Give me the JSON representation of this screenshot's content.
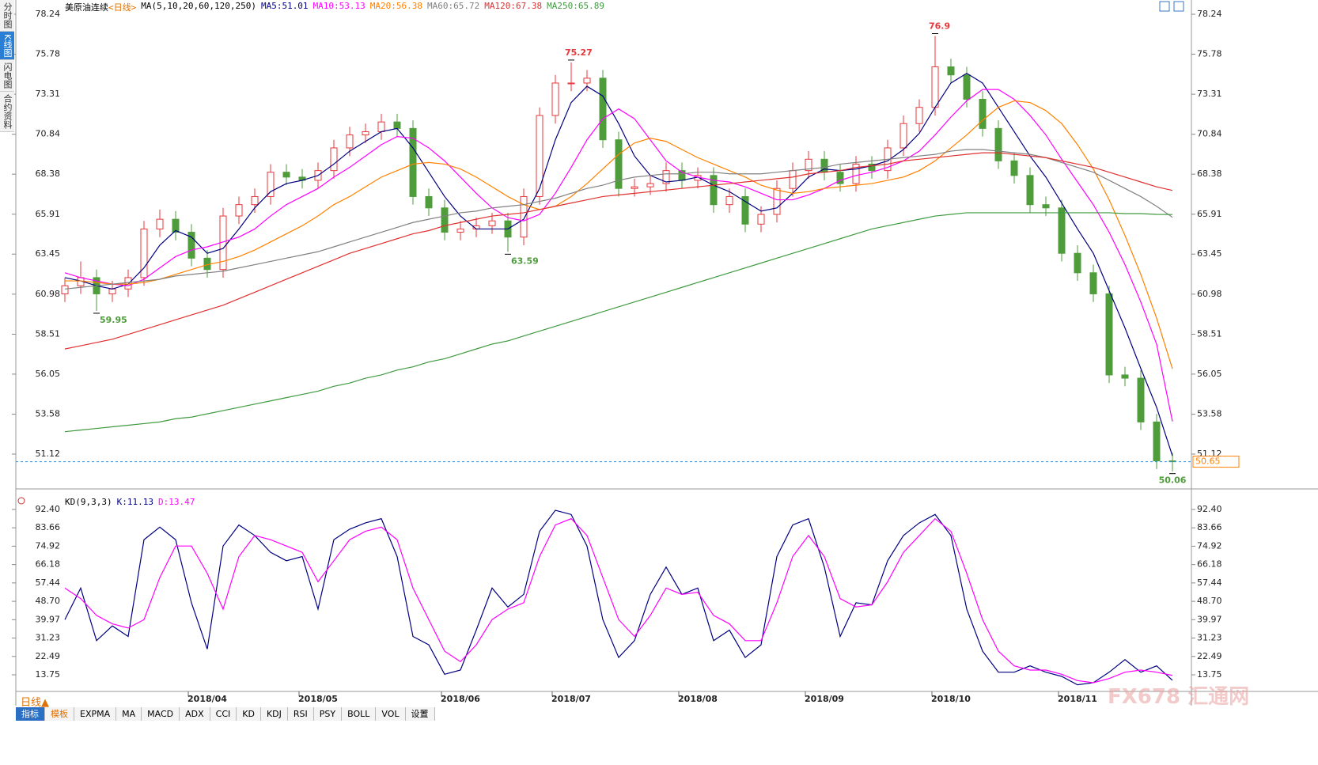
{
  "sidebar_tabs": [
    "分时图",
    "K线图",
    "闪电图",
    "合约资料"
  ],
  "period_button": "日线▲",
  "toolbar": [
    "指标",
    "模板",
    "EXPMA",
    "MA",
    "MACD",
    "ADX",
    "CCI",
    "KD",
    "KDJ",
    "RSI",
    "PSY",
    "BOLL",
    "VOL",
    "设置"
  ],
  "watermark": "FX678 汇通网",
  "chart_data": [
    {
      "type": "candlestick",
      "title": "美原油连续",
      "period": "<日线>",
      "indicator": "MA(5,10,20,60,120,250)",
      "categories": [
        null,
        null,
        null,
        null,
        null,
        null,
        null,
        null,
        null,
        "2018/04",
        null,
        null,
        null,
        null,
        null,
        null,
        "2018/05",
        null,
        null,
        null,
        null,
        null,
        null,
        null,
        null,
        "2018/06",
        null,
        null,
        null,
        null,
        null,
        null,
        "2018/07",
        null,
        null,
        null,
        null,
        null,
        null,
        null,
        "2018/08",
        null,
        null,
        null,
        null,
        null,
        null,
        null,
        "2018/09",
        null,
        null,
        null,
        null,
        null,
        null,
        null,
        "2018/10",
        null,
        null,
        null,
        null,
        null,
        null,
        null,
        "2018/11",
        null,
        null,
        null,
        null,
        null,
        null
      ],
      "open": [
        61.0,
        61.5,
        62.0,
        61.0,
        61.3,
        62.0,
        65.0,
        65.6,
        64.8,
        63.2,
        62.5,
        65.8,
        66.5,
        67.0,
        68.5,
        68.2,
        68.0,
        68.6,
        70.0,
        70.8,
        71.0,
        71.6,
        71.2,
        67.0,
        66.3,
        64.8,
        65.0,
        65.2,
        65.5,
        64.5,
        67.0,
        72.0,
        74.0,
        74.0,
        74.3,
        70.5,
        67.5,
        67.6,
        67.8,
        68.6,
        68.0,
        68.3,
        66.5,
        67.0,
        65.3,
        65.9,
        67.5,
        68.6,
        69.3,
        68.5,
        67.8,
        69.0,
        68.6,
        70.0,
        71.5,
        72.5,
        75.0,
        74.5,
        73.0,
        71.2,
        69.2,
        68.3,
        66.5,
        66.3,
        63.5,
        62.3,
        61.0,
        56.0,
        55.8,
        53.1,
        50.7
      ],
      "high": [
        62.0,
        63.0,
        62.5,
        61.8,
        62.5,
        65.5,
        66.2,
        66.1,
        65.3,
        63.7,
        66.3,
        67.0,
        67.5,
        69.0,
        69.0,
        68.7,
        69.1,
        70.5,
        71.3,
        71.5,
        72.1,
        72.1,
        71.7,
        67.5,
        66.8,
        65.5,
        65.7,
        66.0,
        66.0,
        67.5,
        72.5,
        74.5,
        75.27,
        74.8,
        74.8,
        71.0,
        68.1,
        68.3,
        69.1,
        69.1,
        68.8,
        68.8,
        67.5,
        67.5,
        66.4,
        68.0,
        69.1,
        69.8,
        69.8,
        69.0,
        69.5,
        69.5,
        70.5,
        72.0,
        73.0,
        76.9,
        75.5,
        75.0,
        73.5,
        71.7,
        69.7,
        68.8,
        67.0,
        66.8,
        64.0,
        62.8,
        61.5,
        56.5,
        56.3,
        53.6,
        51.2
      ],
      "low": [
        60.5,
        61.0,
        59.95,
        60.5,
        60.8,
        61.5,
        64.5,
        64.3,
        62.7,
        62.0,
        62.0,
        65.3,
        66.0,
        66.5,
        67.7,
        67.5,
        67.5,
        68.1,
        69.5,
        70.3,
        70.5,
        70.7,
        66.5,
        65.8,
        64.3,
        64.3,
        64.5,
        64.7,
        63.59,
        64.0,
        66.5,
        71.5,
        73.5,
        73.5,
        70.0,
        67.0,
        67.0,
        67.1,
        67.3,
        67.5,
        67.5,
        66.0,
        66.0,
        64.8,
        64.8,
        65.4,
        67.0,
        68.1,
        68.0,
        67.3,
        67.3,
        68.1,
        68.1,
        69.5,
        71.0,
        72.0,
        74.0,
        72.5,
        70.7,
        68.7,
        67.8,
        66.0,
        65.8,
        63.0,
        61.8,
        60.5,
        55.5,
        55.3,
        52.6,
        50.2,
        50.06
      ],
      "close": [
        61.5,
        62.0,
        61.0,
        61.3,
        62.0,
        65.0,
        65.6,
        64.8,
        63.2,
        62.5,
        65.8,
        66.5,
        67.0,
        68.5,
        68.2,
        68.0,
        68.6,
        70.0,
        70.8,
        71.0,
        71.6,
        71.2,
        67.0,
        66.3,
        64.8,
        65.0,
        65.2,
        65.5,
        64.5,
        67.0,
        72.0,
        74.0,
        74.0,
        74.3,
        70.5,
        67.5,
        67.6,
        67.8,
        68.6,
        68.0,
        68.3,
        66.5,
        67.0,
        65.3,
        65.9,
        67.5,
        68.6,
        69.3,
        68.5,
        67.8,
        69.0,
        68.6,
        70.0,
        71.5,
        72.5,
        75.0,
        74.5,
        73.0,
        71.2,
        69.2,
        68.3,
        66.5,
        66.3,
        63.5,
        62.3,
        61.0,
        56.0,
        55.8,
        53.1,
        50.7,
        50.65
      ],
      "up_color": "#e8363a",
      "down_color": "#4e9c3a",
      "last_price_color": "#ff8000",
      "series": [
        {
          "name": "MA5:51.01",
          "color": "#000080",
          "values": [
            62.0,
            61.8,
            61.5,
            61.3,
            61.6,
            62.6,
            64.0,
            64.9,
            64.5,
            63.5,
            63.8,
            65.0,
            66.3,
            67.3,
            67.8,
            68.0,
            68.3,
            69.0,
            69.8,
            70.4,
            71.0,
            71.2,
            70.0,
            68.5,
            67.0,
            65.8,
            65.0,
            65.0,
            65.0,
            65.6,
            67.5,
            70.5,
            72.8,
            73.8,
            73.2,
            71.5,
            69.5,
            68.3,
            67.9,
            68.0,
            68.2,
            67.7,
            67.3,
            66.7,
            66.1,
            66.3,
            67.2,
            68.2,
            68.7,
            68.6,
            68.7,
            68.9,
            69.2,
            69.9,
            70.9,
            72.5,
            74.0,
            74.6,
            74.0,
            72.5,
            71.0,
            69.5,
            68.2,
            66.6,
            65.0,
            63.5,
            61.2,
            58.9,
            56.4,
            54.0,
            51.01
          ]
        },
        {
          "name": "MA10:53.13",
          "color": "#ff00ff",
          "values": [
            62.3,
            62.0,
            61.8,
            61.6,
            61.5,
            61.9,
            62.6,
            63.3,
            63.7,
            63.9,
            64.2,
            64.5,
            65.0,
            65.8,
            66.5,
            67.0,
            67.5,
            68.2,
            68.8,
            69.5,
            70.2,
            70.7,
            70.6,
            70.0,
            69.2,
            68.2,
            67.2,
            66.3,
            65.7,
            65.5,
            65.9,
            67.2,
            68.8,
            70.5,
            71.8,
            72.4,
            71.8,
            70.5,
            69.2,
            68.5,
            68.2,
            68.0,
            67.9,
            67.6,
            67.2,
            66.8,
            66.8,
            67.1,
            67.5,
            68.0,
            68.3,
            68.5,
            68.8,
            69.2,
            69.8,
            70.8,
            71.9,
            72.9,
            73.6,
            73.6,
            73.0,
            72.0,
            70.8,
            69.3,
            67.9,
            66.5,
            64.8,
            62.8,
            60.5,
            57.9,
            53.13
          ]
        },
        {
          "name": "MA20:56.38",
          "color": "#ff8000",
          "values": [
            61.8,
            61.8,
            61.7,
            61.6,
            61.6,
            61.7,
            61.9,
            62.2,
            62.5,
            62.8,
            63.0,
            63.3,
            63.7,
            64.2,
            64.7,
            65.2,
            65.8,
            66.5,
            67.0,
            67.6,
            68.2,
            68.6,
            69.0,
            69.1,
            69.0,
            68.7,
            68.2,
            67.6,
            67.0,
            66.5,
            66.2,
            66.4,
            67.0,
            67.8,
            68.7,
            69.6,
            70.3,
            70.6,
            70.4,
            69.9,
            69.4,
            69.0,
            68.6,
            68.2,
            67.7,
            67.4,
            67.2,
            67.3,
            67.5,
            67.6,
            67.7,
            67.8,
            68.0,
            68.2,
            68.6,
            69.2,
            70.0,
            70.8,
            71.7,
            72.5,
            72.9,
            72.8,
            72.3,
            71.5,
            70.2,
            68.7,
            66.8,
            64.6,
            62.2,
            59.5,
            56.38
          ]
        },
        {
          "name": "MA60:65.72",
          "color": "#808080",
          "values": [
            61.3,
            61.4,
            61.5,
            61.6,
            61.7,
            61.8,
            61.9,
            62.1,
            62.2,
            62.3,
            62.4,
            62.6,
            62.8,
            63.0,
            63.2,
            63.4,
            63.6,
            63.9,
            64.2,
            64.5,
            64.8,
            65.1,
            65.4,
            65.6,
            65.8,
            66.0,
            66.1,
            66.3,
            66.4,
            66.5,
            66.7,
            66.9,
            67.2,
            67.5,
            67.7,
            68.0,
            68.2,
            68.3,
            68.4,
            68.4,
            68.5,
            68.5,
            68.4,
            68.4,
            68.4,
            68.5,
            68.6,
            68.7,
            68.8,
            69.0,
            69.1,
            69.2,
            69.3,
            69.4,
            69.5,
            69.6,
            69.8,
            69.9,
            69.9,
            69.8,
            69.7,
            69.6,
            69.4,
            69.1,
            68.8,
            68.5,
            68.0,
            67.5,
            67.0,
            66.4,
            65.72
          ]
        },
        {
          "name": "MA120:67.38",
          "color": "#e03030",
          "values": [
            57.6,
            57.8,
            58.0,
            58.2,
            58.5,
            58.8,
            59.1,
            59.4,
            59.7,
            60.0,
            60.3,
            60.7,
            61.1,
            61.5,
            61.9,
            62.3,
            62.7,
            63.1,
            63.5,
            63.8,
            64.1,
            64.4,
            64.7,
            64.9,
            65.2,
            65.4,
            65.6,
            65.8,
            65.9,
            66.0,
            66.2,
            66.4,
            66.6,
            66.8,
            67.0,
            67.1,
            67.2,
            67.3,
            67.4,
            67.5,
            67.6,
            67.7,
            67.8,
            67.9,
            68.0,
            68.1,
            68.2,
            68.4,
            68.5,
            68.6,
            68.8,
            68.9,
            69.0,
            69.2,
            69.3,
            69.4,
            69.5,
            69.6,
            69.7,
            69.7,
            69.6,
            69.5,
            69.4,
            69.2,
            69.0,
            68.8,
            68.5,
            68.2,
            67.9,
            67.6,
            67.38
          ]
        },
        {
          "name": "MA250:65.89",
          "color": "#3f9a3f",
          "values": [
            52.5,
            52.6,
            52.7,
            52.8,
            52.9,
            53.0,
            53.1,
            53.3,
            53.4,
            53.6,
            53.8,
            54.0,
            54.2,
            54.4,
            54.6,
            54.8,
            55.0,
            55.3,
            55.5,
            55.8,
            56.0,
            56.3,
            56.5,
            56.8,
            57.0,
            57.3,
            57.6,
            57.9,
            58.1,
            58.4,
            58.7,
            59.0,
            59.3,
            59.6,
            59.9,
            60.2,
            60.5,
            60.8,
            61.1,
            61.4,
            61.7,
            62.0,
            62.3,
            62.6,
            62.9,
            63.2,
            63.5,
            63.8,
            64.1,
            64.4,
            64.7,
            65.0,
            65.2,
            65.4,
            65.6,
            65.8,
            65.9,
            66.0,
            66.0,
            66.0,
            66.0,
            66.0,
            66.0,
            66.0,
            66.0,
            66.0,
            66.0,
            65.95,
            65.95,
            65.9,
            65.89
          ]
        }
      ],
      "ylim": [
        49.85,
        78.73
      ],
      "yticks": [
        78.24,
        75.78,
        73.31,
        70.84,
        68.38,
        65.91,
        63.45,
        60.98,
        58.51,
        56.05,
        53.58,
        51.12
      ]
    },
    {
      "type": "line",
      "title": "KD(9,3,3)",
      "series": [
        {
          "name": "K:11.13",
          "color": "#000080",
          "values": [
            40,
            55,
            30,
            37,
            32,
            78,
            84,
            78,
            48,
            26,
            75,
            85,
            80,
            72,
            68,
            70,
            45,
            78,
            83,
            86,
            88,
            70,
            32,
            28,
            14,
            16,
            35,
            55,
            46,
            52,
            82,
            92,
            90,
            75,
            40,
            22,
            30,
            52,
            65,
            52,
            55,
            30,
            35,
            22,
            28,
            70,
            85,
            88,
            65,
            32,
            48,
            47,
            68,
            80,
            86,
            90,
            80,
            45,
            25,
            15,
            15,
            18,
            15,
            13,
            9,
            10,
            15,
            21,
            15,
            18,
            11.13
          ]
        },
        {
          "name": "D:13.47",
          "color": "#ff00ff",
          "values": [
            55,
            50,
            42,
            38,
            36,
            40,
            60,
            75,
            75,
            62,
            45,
            70,
            80,
            78,
            75,
            72,
            58,
            68,
            78,
            82,
            84,
            78,
            55,
            40,
            25,
            20,
            28,
            40,
            45,
            48,
            70,
            85,
            88,
            80,
            60,
            40,
            32,
            42,
            55,
            52,
            53,
            42,
            38,
            30,
            30,
            48,
            70,
            80,
            70,
            50,
            46,
            47,
            58,
            72,
            80,
            88,
            82,
            62,
            40,
            25,
            18,
            16,
            16,
            14,
            11,
            10,
            12,
            15,
            16,
            15,
            13.47
          ]
        }
      ],
      "ylim": [
        6.6,
        98.4
      ],
      "yticks": [
        {
          "value": 92.4,
          "label": "92.40"
        },
        83.66,
        74.92,
        66.18,
        57.44,
        {
          "value": 48.7,
          "label": "48.70"
        },
        39.97,
        31.23,
        22.49,
        13.75
      ]
    }
  ]
}
